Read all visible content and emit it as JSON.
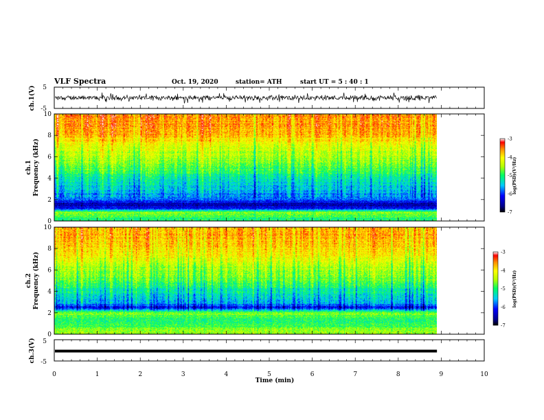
{
  "header": {
    "title": "VLF Spectra",
    "date": "Oct. 19, 2020",
    "station": "station= ATH",
    "start": "start  UT  =   5  : 40 : 1"
  },
  "chart_data": [
    {
      "type": "line",
      "name": "ch1-waveform",
      "ylabel": "ch.1(V)",
      "ylim": [
        -5,
        5
      ],
      "yticks": [
        "5",
        "-5"
      ],
      "xlim": [
        0,
        10
      ],
      "data_extent_min": 8.9,
      "typical_value": 0,
      "amplitude_range": [
        -2.5,
        2.5
      ]
    },
    {
      "type": "heatmap",
      "name": "ch1-spectrogram",
      "ylabel": "ch.1\nFrequency (kHz)",
      "ylim": [
        0,
        10
      ],
      "yticks": [
        "0",
        "2",
        "4",
        "6",
        "8",
        "10"
      ],
      "xlim": [
        0,
        10
      ],
      "data_extent_min": 8.9,
      "colorbar": {
        "label": "log(PSD)(V²/Hz)",
        "range": [
          -7,
          -3
        ],
        "ticks": [
          "-3",
          "-4",
          "-5",
          "-6",
          "-7"
        ]
      },
      "band_profile": [
        {
          "f": 0.3,
          "v": -5.0
        },
        {
          "f": 0.8,
          "v": -4.5
        },
        {
          "f": 1.2,
          "v": -6.3
        },
        {
          "f": 1.6,
          "v": -6.5
        },
        {
          "f": 2.0,
          "v": -5.8
        },
        {
          "f": 3.0,
          "v": -5.5
        },
        {
          "f": 4.0,
          "v": -5.2
        },
        {
          "f": 5.0,
          "v": -4.8
        },
        {
          "f": 6.0,
          "v": -4.5
        },
        {
          "f": 7.0,
          "v": -4.2
        },
        {
          "f": 8.0,
          "v": -3.8
        },
        {
          "f": 9.0,
          "v": -3.6
        },
        {
          "f": 10.0,
          "v": -3.6
        }
      ]
    },
    {
      "type": "heatmap",
      "name": "ch2-spectrogram",
      "ylabel": "ch.2\nFrequency (kHz)",
      "ylim": [
        0,
        10
      ],
      "yticks": [
        "0",
        "2",
        "4",
        "6",
        "8",
        "10"
      ],
      "xlim": [
        0,
        10
      ],
      "data_extent_min": 8.9,
      "colorbar": {
        "label": "log(PSD)(V²/Hz)",
        "range": [
          -7,
          -3
        ],
        "ticks": [
          "-3",
          "-4",
          "-5",
          "-6",
          "-7"
        ]
      },
      "band_profile": [
        {
          "f": 0.3,
          "v": -4.5
        },
        {
          "f": 1.0,
          "v": -5.0
        },
        {
          "f": 1.5,
          "v": -5.0
        },
        {
          "f": 2.0,
          "v": -4.6
        },
        {
          "f": 2.5,
          "v": -6.2
        },
        {
          "f": 3.0,
          "v": -5.5
        },
        {
          "f": 4.0,
          "v": -5.2
        },
        {
          "f": 5.0,
          "v": -4.8
        },
        {
          "f": 6.0,
          "v": -4.5
        },
        {
          "f": 7.0,
          "v": -4.2
        },
        {
          "f": 8.0,
          "v": -3.9
        },
        {
          "f": 9.0,
          "v": -3.7
        },
        {
          "f": 10.0,
          "v": -3.7
        }
      ]
    },
    {
      "type": "line",
      "name": "ch3-waveform",
      "ylabel": "ch.3(V)",
      "ylim": [
        -5,
        5
      ],
      "yticks": [
        "5",
        "-5"
      ],
      "xlim": [
        0,
        10
      ],
      "data_extent_min": 8.9,
      "typical_value": 0,
      "amplitude_range": [
        -0.3,
        0.3
      ]
    }
  ],
  "xaxis": {
    "label": "Time  (min)",
    "ticks": [
      "0",
      "1",
      "2",
      "3",
      "4",
      "5",
      "6",
      "7",
      "8",
      "9",
      "10"
    ]
  }
}
